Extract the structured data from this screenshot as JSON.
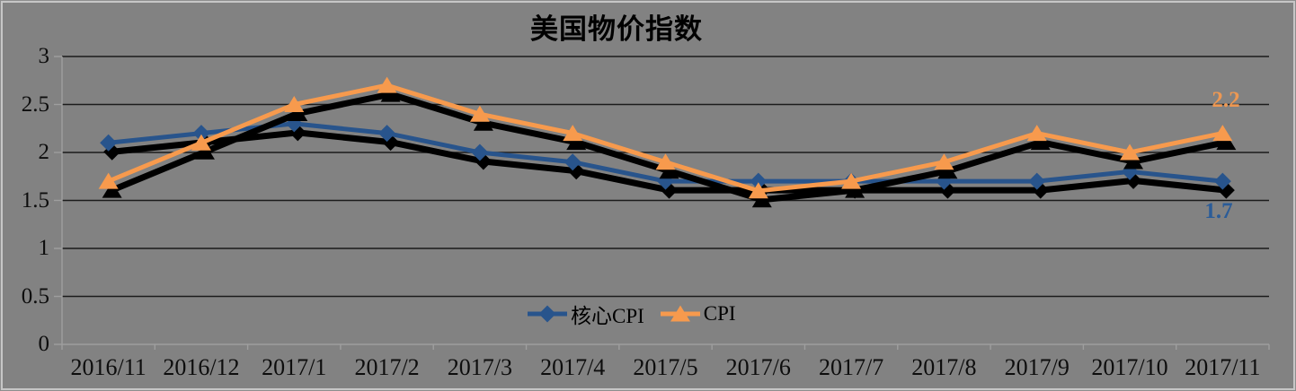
{
  "chart": {
    "title": "美国物价指数",
    "end_labels": {
      "cpi": "2.2",
      "core_cpi": "1.7"
    }
  },
  "chart_data": {
    "type": "line",
    "title": "美国物价指数",
    "categories": [
      "2016/11",
      "2016/12",
      "2017/1",
      "2017/2",
      "2017/3",
      "2017/4",
      "2017/5",
      "2017/6",
      "2017/7",
      "2017/8",
      "2017/9",
      "2017/10",
      "2017/11"
    ],
    "series": [
      {
        "name": "核心CPI",
        "marker": "diamond",
        "color": "#28548C",
        "values": [
          2.1,
          2.2,
          2.3,
          2.2,
          2.0,
          1.9,
          1.7,
          1.7,
          1.7,
          1.7,
          1.7,
          1.8,
          1.7
        ]
      },
      {
        "name": "CPI",
        "marker": "triangle",
        "color": "#F79A4D",
        "values": [
          1.7,
          2.1,
          2.5,
          2.7,
          2.4,
          2.2,
          1.9,
          1.6,
          1.7,
          1.9,
          2.2,
          2.0,
          2.2
        ]
      }
    ],
    "ylim": [
      0,
      3
    ],
    "ytick_step": 0.5,
    "yticks": [
      "0",
      "0.5",
      "1",
      "1.5",
      "2",
      "2.5",
      "3"
    ],
    "grid": true,
    "legend_position": "bottom-center",
    "background_color": "#828282",
    "gridline_color": "#1b1b1b",
    "axis_color": "#9e9e9e",
    "shadow_color": "#000000",
    "annotations": [
      {
        "text": "2.2",
        "series": "CPI",
        "at": "2017/11",
        "color": "#ED9853"
      },
      {
        "text": "1.7",
        "series": "核心CPI",
        "at": "2017/11",
        "color": "#2B5C98"
      }
    ]
  }
}
